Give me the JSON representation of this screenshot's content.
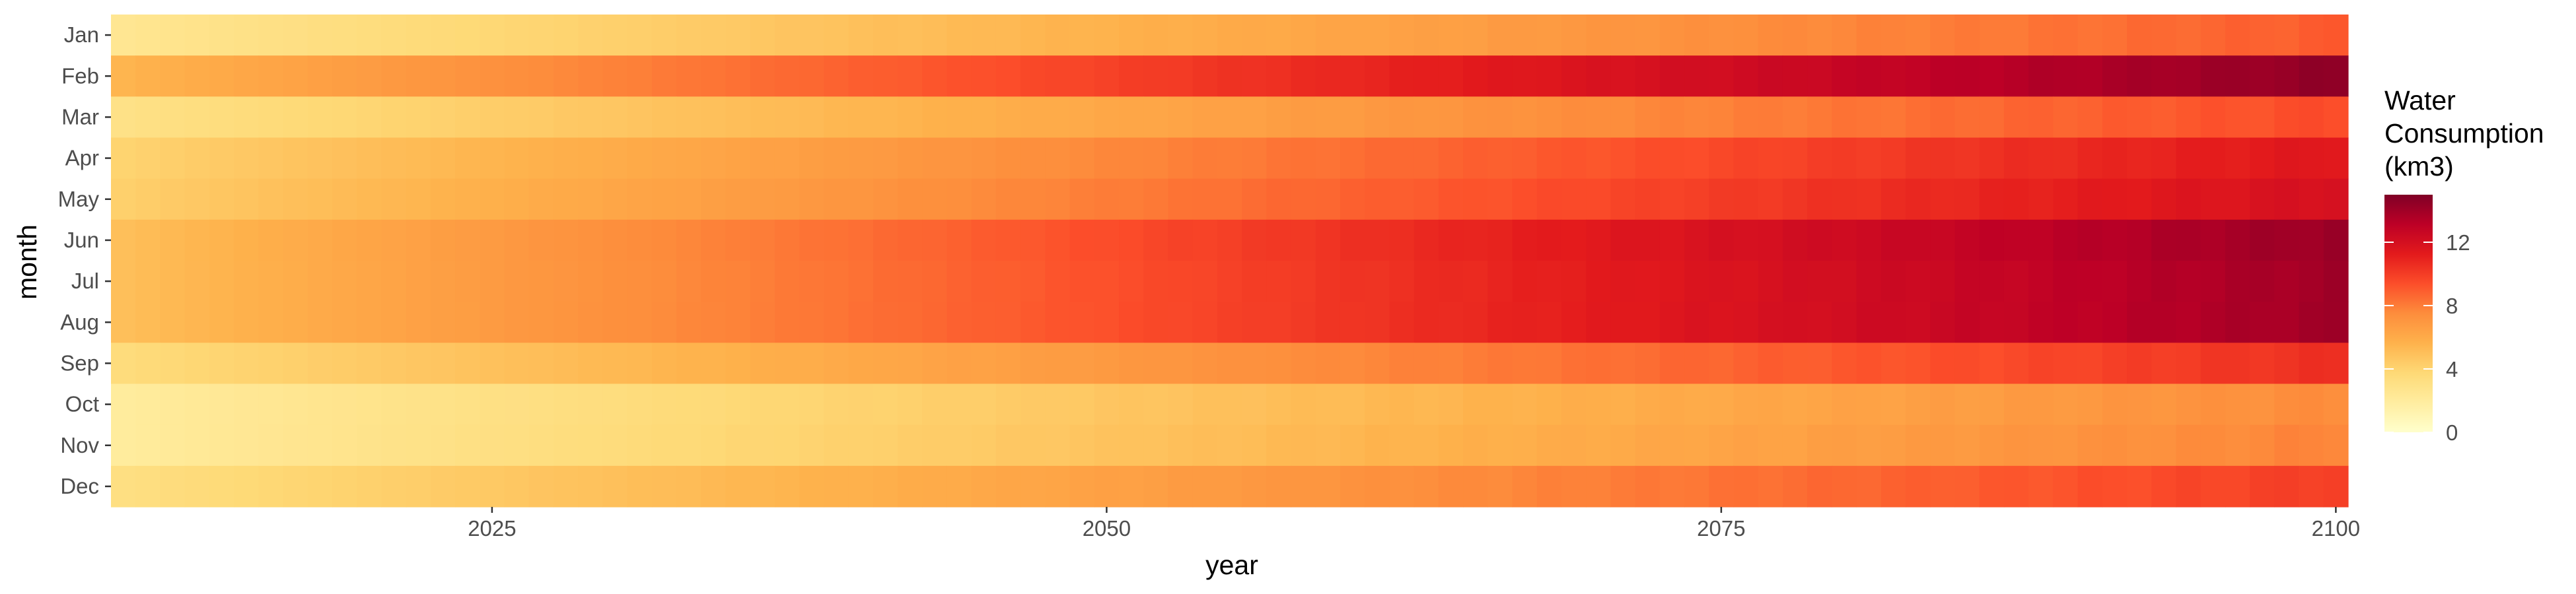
{
  "chart_data": {
    "type": "heatmap",
    "title": "",
    "xlabel": "year",
    "ylabel": "month",
    "x_range": [
      2010,
      2100
    ],
    "x_ticks": [
      2025,
      2050,
      2075,
      2100
    ],
    "x_tick_labels": [
      "2025",
      "2050",
      "2075",
      "2100"
    ],
    "months": [
      "Jan",
      "Feb",
      "Mar",
      "Apr",
      "May",
      "Jun",
      "Jul",
      "Aug",
      "Sep",
      "Oct",
      "Nov",
      "Dec"
    ],
    "values_note": "Water consumption (km3) per month; value at start year 2010 and end year 2100, interpolated with a slightly accelerating trend",
    "monthly_series": [
      {
        "month": "Jan",
        "start": 2.5,
        "end": 9.0
      },
      {
        "month": "Feb",
        "start": 5.5,
        "end": 14.5
      },
      {
        "month": "Mar",
        "start": 3.0,
        "end": 9.5
      },
      {
        "month": "Apr",
        "start": 4.0,
        "end": 11.5
      },
      {
        "month": "May",
        "start": 4.2,
        "end": 12.0
      },
      {
        "month": "Jun",
        "start": 5.0,
        "end": 14.2
      },
      {
        "month": "Jul",
        "start": 5.0,
        "end": 14.0
      },
      {
        "month": "Aug",
        "start": 5.0,
        "end": 14.0
      },
      {
        "month": "Sep",
        "start": 3.5,
        "end": 10.5
      },
      {
        "month": "Oct",
        "start": 2.0,
        "end": 7.5
      },
      {
        "month": "Nov",
        "start": 2.0,
        "end": 7.8
      },
      {
        "month": "Dec",
        "start": 3.2,
        "end": 10.0
      }
    ],
    "legend": {
      "title_lines": [
        "Water",
        "Consumption",
        "(km3)"
      ],
      "range": [
        0,
        15
      ],
      "ticks": [
        0,
        4,
        8,
        12
      ],
      "tick_labels": [
        "0",
        "4",
        "8",
        "12"
      ],
      "colors": [
        "#FFFFCC",
        "#FFEDA0",
        "#FED976",
        "#FEB24C",
        "#FD8D3C",
        "#FC4E2A",
        "#E31A1C",
        "#BD0026",
        "#800026"
      ]
    }
  }
}
